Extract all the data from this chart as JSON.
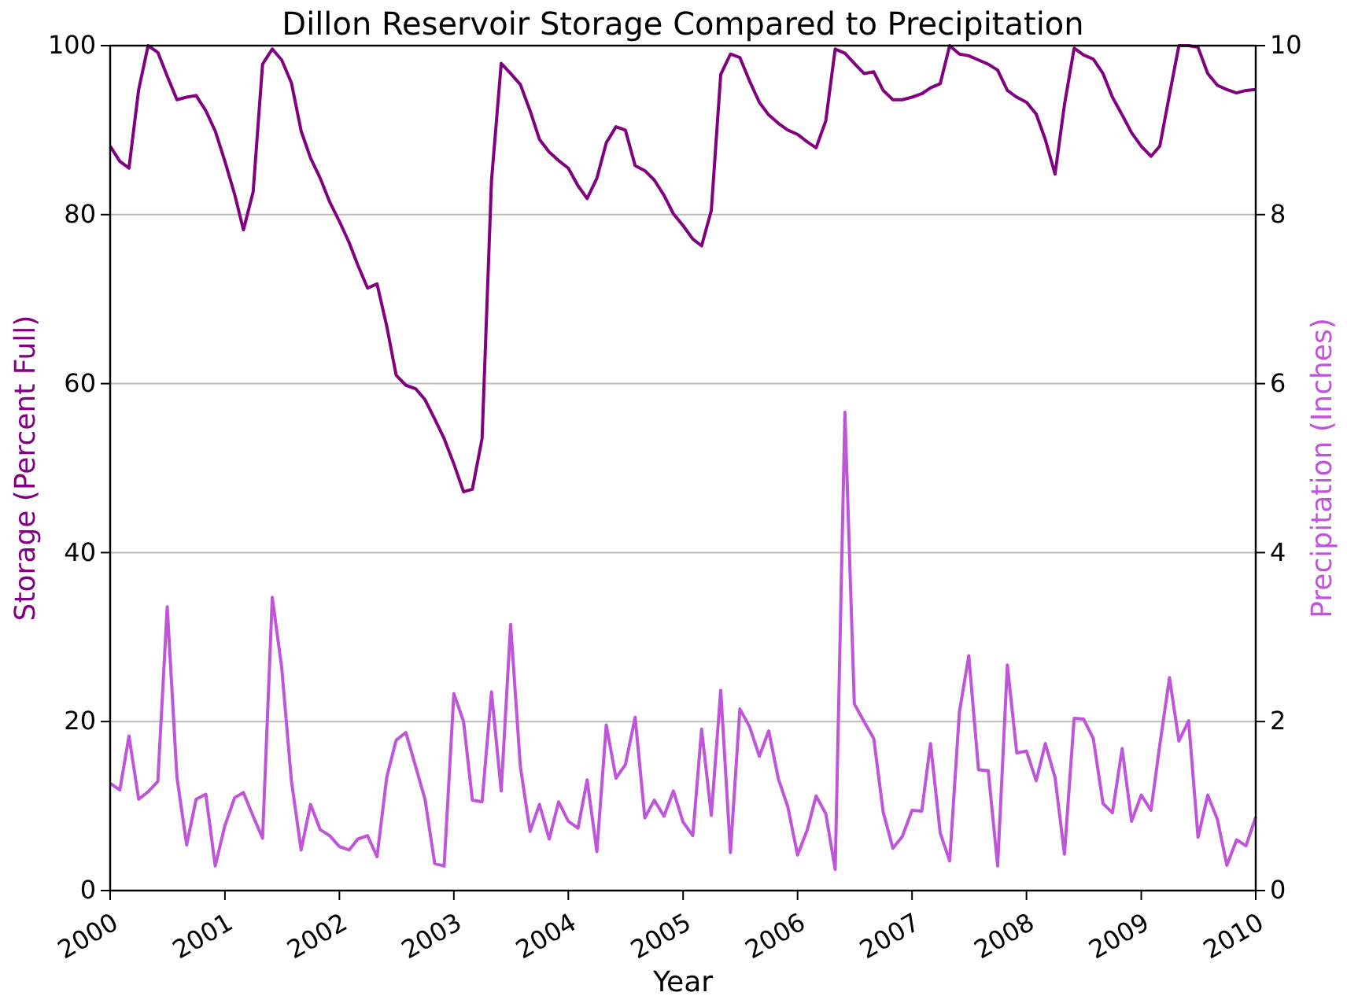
{
  "chart_data": {
    "type": "line",
    "title": "Dillon Reservoir Storage Compared to Precipitation",
    "xlabel": "Year",
    "ylabel": "Storage (Percent Full)",
    "y2label": "Precipitation (Inches)",
    "x": [
      "2000-01",
      "2000-02",
      "2000-03",
      "2000-04",
      "2000-05",
      "2000-06",
      "2000-07",
      "2000-08",
      "2000-09",
      "2000-10",
      "2000-11",
      "2000-12",
      "2001-01",
      "2001-02",
      "2001-03",
      "2001-04",
      "2001-05",
      "2001-06",
      "2001-07",
      "2001-08",
      "2001-09",
      "2001-10",
      "2001-11",
      "2001-12",
      "2002-01",
      "2002-02",
      "2002-03",
      "2002-04",
      "2002-05",
      "2002-06",
      "2002-07",
      "2002-08",
      "2002-09",
      "2002-10",
      "2002-11",
      "2002-12",
      "2003-01",
      "2003-02",
      "2003-03",
      "2003-04",
      "2003-05",
      "2003-06",
      "2003-07",
      "2003-08",
      "2003-09",
      "2003-10",
      "2003-11",
      "2003-12",
      "2004-01",
      "2004-02",
      "2004-03",
      "2004-04",
      "2004-05",
      "2004-06",
      "2004-07",
      "2004-08",
      "2004-09",
      "2004-10",
      "2004-11",
      "2004-12",
      "2005-01",
      "2005-02",
      "2005-03",
      "2005-04",
      "2005-05",
      "2005-06",
      "2005-07",
      "2005-08",
      "2005-09",
      "2005-10",
      "2005-11",
      "2005-12",
      "2006-01",
      "2006-02",
      "2006-03",
      "2006-04",
      "2006-05",
      "2006-06",
      "2006-07",
      "2006-08",
      "2006-09",
      "2006-10",
      "2006-11",
      "2006-12",
      "2007-01",
      "2007-02",
      "2007-03",
      "2007-04",
      "2007-05",
      "2007-06",
      "2007-07",
      "2007-08",
      "2007-09",
      "2007-10",
      "2007-11",
      "2007-12",
      "2008-01",
      "2008-02",
      "2008-03",
      "2008-04",
      "2008-05",
      "2008-06",
      "2008-07",
      "2008-08",
      "2008-09",
      "2008-10",
      "2008-11",
      "2008-12",
      "2009-01",
      "2009-02",
      "2009-03",
      "2009-04",
      "2009-05",
      "2009-06",
      "2009-07",
      "2009-08",
      "2009-09",
      "2009-10",
      "2009-11",
      "2009-12",
      "2010-01"
    ],
    "series": [
      {
        "color": "#800080",
        "values": [
          88.1,
          86.3,
          85.5,
          94.8,
          100,
          99.2,
          96.4,
          93.6,
          93.9,
          94.1,
          92.3,
          89.9,
          86.3,
          82.4,
          78.2,
          82.7,
          97.8,
          99.6,
          98.3,
          95.6,
          89.9,
          86.7,
          84.3,
          81.5,
          79.2,
          76.7,
          74.0,
          71.3,
          71.8,
          66.8,
          61.0,
          59.8,
          59.4,
          58.1,
          55.8,
          53.5,
          50.5,
          47.2,
          47.5,
          53.5,
          84.0,
          97.9,
          96.7,
          95.4,
          92.3,
          88.9,
          87.4,
          86.4,
          85.5,
          83.4,
          81.9,
          84.3,
          88.5,
          90.4,
          90.0,
          85.8,
          85.2,
          84.1,
          82.3,
          80.1,
          78.7,
          77.1,
          76.3,
          80.5,
          96.6,
          99.0,
          98.6,
          95.8,
          93.3,
          91.8,
          90.8,
          90.0,
          89.5,
          88.6,
          87.9,
          91.1,
          99.6,
          99.1,
          97.9,
          96.7,
          96.9,
          94.7,
          93.6,
          93.6,
          93.9,
          94.3,
          95.0,
          95.5,
          100,
          99.0,
          98.8,
          98.3,
          97.8,
          97.1,
          94.7,
          93.9,
          93.3,
          91.9,
          88.9,
          84.8,
          93.0,
          99.7,
          98.9,
          98.4,
          96.7,
          93.9,
          91.8,
          89.7,
          88.1,
          86.9,
          88.1,
          94.2,
          100,
          100,
          99.8,
          96.7,
          95.3,
          94.8,
          94.4,
          94.7,
          94.8
        ]
      },
      {
        "axis": "y2",
        "color": "#bf55d8",
        "values": [
          1.27,
          1.19,
          1.83,
          1.08,
          1.17,
          1.29,
          3.36,
          1.34,
          0.54,
          1.08,
          1.14,
          0.29,
          0.77,
          1.1,
          1.16,
          0.88,
          0.62,
          3.47,
          2.64,
          1.3,
          0.48,
          1.02,
          0.72,
          0.65,
          0.52,
          0.48,
          0.61,
          0.65,
          0.4,
          1.34,
          1.78,
          1.87,
          1.47,
          1.08,
          0.32,
          0.29,
          2.33,
          2.0,
          1.07,
          1.05,
          2.35,
          1.18,
          3.15,
          1.47,
          0.7,
          1.02,
          0.61,
          1.05,
          0.82,
          0.74,
          1.31,
          0.46,
          1.96,
          1.33,
          1.49,
          2.05,
          0.86,
          1.07,
          0.88,
          1.18,
          0.81,
          0.65,
          1.91,
          0.89,
          2.37,
          0.45,
          2.15,
          1.94,
          1.59,
          1.89,
          1.32,
          0.99,
          0.42,
          0.72,
          1.12,
          0.91,
          0.25,
          5.66,
          2.21,
          2.0,
          1.8,
          0.93,
          0.5,
          0.64,
          0.95,
          0.94,
          1.74,
          0.68,
          0.35,
          2.11,
          2.78,
          1.43,
          1.42,
          0.29,
          2.67,
          1.63,
          1.65,
          1.3,
          1.74,
          1.34,
          0.43,
          2.04,
          2.03,
          1.8,
          1.03,
          0.92,
          1.68,
          0.82,
          1.13,
          0.95,
          1.72,
          2.52,
          1.77,
          2.01,
          0.63,
          1.13,
          0.84,
          0.3,
          0.6,
          0.53,
          0.87
        ]
      }
    ],
    "xlim": [
      "2000-01",
      "2010-01"
    ],
    "xticks": [
      {
        "value": "2000-01",
        "label": "2000"
      },
      {
        "value": "2001-01",
        "label": "2001"
      },
      {
        "value": "2002-01",
        "label": "2002"
      },
      {
        "value": "2003-01",
        "label": "2003"
      },
      {
        "value": "2004-01",
        "label": "2004"
      },
      {
        "value": "2005-01",
        "label": "2005"
      },
      {
        "value": "2006-01",
        "label": "2006"
      },
      {
        "value": "2007-01",
        "label": "2007"
      },
      {
        "value": "2008-01",
        "label": "2008"
      },
      {
        "value": "2009-01",
        "label": "2009"
      },
      {
        "value": "2010-01",
        "label": "2010"
      }
    ],
    "ylim": [
      0,
      100
    ],
    "yticks": [
      0,
      20,
      40,
      60,
      80,
      100
    ],
    "y2lim": [
      0,
      10
    ],
    "y2ticks": [
      0,
      2,
      4,
      6,
      8,
      10
    ],
    "grid": "y",
    "legend": false,
    "marker": "none",
    "line_style": "solid"
  }
}
